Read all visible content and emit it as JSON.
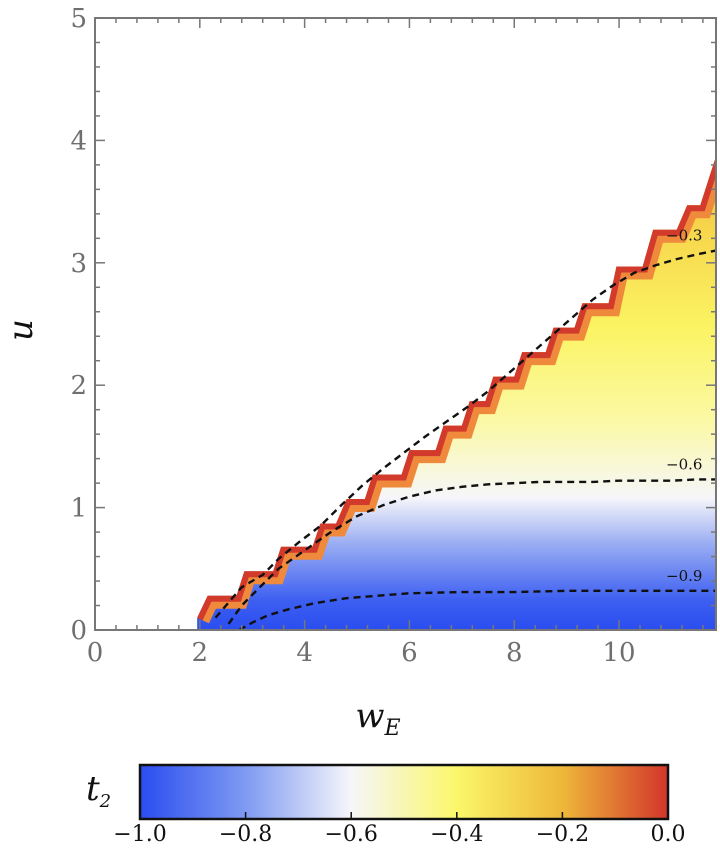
{
  "chart_data": {
    "type": "heatmap",
    "xlabel": "w",
    "xlabel_sub": "E",
    "ylabel": "u",
    "xlim": [
      0,
      11.85
    ],
    "ylim": [
      0,
      5
    ],
    "x_ticks": [
      0,
      2,
      4,
      6,
      8,
      10
    ],
    "x_tick_labels": [
      "0",
      "2",
      "4",
      "6",
      "8",
      "10"
    ],
    "y_ticks": [
      0,
      1,
      2,
      3,
      4,
      5
    ],
    "y_tick_labels": [
      "0",
      "1",
      "2",
      "3",
      "4",
      "5"
    ],
    "region_upper_boundary": {
      "x": [
        1.95,
        2.15,
        2.7,
        2.85,
        3.4,
        3.55,
        4.15,
        4.3,
        4.6,
        4.8,
        5.15,
        5.3,
        5.85,
        6.0,
        6.5,
        6.65,
        7.0,
        7.15,
        7.45,
        7.6,
        8.0,
        8.15,
        8.6,
        8.75,
        9.15,
        9.3,
        9.8,
        9.95,
        10.45,
        10.65,
        11.1,
        11.3,
        11.55,
        11.85
      ],
      "y": [
        0.1,
        0.28,
        0.28,
        0.48,
        0.48,
        0.68,
        0.68,
        0.87,
        0.87,
        1.07,
        1.07,
        1.27,
        1.27,
        1.47,
        1.47,
        1.67,
        1.67,
        1.87,
        1.87,
        2.07,
        2.07,
        2.27,
        2.27,
        2.47,
        2.47,
        2.67,
        2.67,
        2.97,
        2.97,
        3.27,
        3.27,
        3.47,
        3.47,
        3.87
      ]
    },
    "contours": [
      {
        "level": -0.3,
        "label": "−0.3",
        "x": [
          2.3,
          2.6,
          2.8,
          3.2,
          3.5,
          3.9,
          4.3,
          4.7,
          5.1,
          5.5,
          5.9,
          6.3,
          6.7,
          7.1,
          7.5,
          7.9,
          8.3,
          8.7,
          9.1,
          9.5,
          9.9,
          10.3,
          10.7,
          11.1,
          11.5,
          11.85
        ],
        "y": [
          0.1,
          0.25,
          0.35,
          0.45,
          0.58,
          0.72,
          0.85,
          1.02,
          1.18,
          1.32,
          1.45,
          1.58,
          1.7,
          1.82,
          1.95,
          2.1,
          2.25,
          2.4,
          2.55,
          2.7,
          2.82,
          2.92,
          2.98,
          3.03,
          3.07,
          3.1
        ]
      },
      {
        "level": -0.6,
        "label": "−0.6",
        "x": [
          2.55,
          2.8,
          3.1,
          3.5,
          4.0,
          4.5,
          5.0,
          5.5,
          6.0,
          6.5,
          7.0,
          7.5,
          8.0,
          8.5,
          9.0,
          9.5,
          10.0,
          10.5,
          11.0,
          11.5,
          11.85
        ],
        "y": [
          0.05,
          0.2,
          0.33,
          0.5,
          0.65,
          0.8,
          0.93,
          1.02,
          1.09,
          1.14,
          1.17,
          1.19,
          1.2,
          1.21,
          1.21,
          1.21,
          1.22,
          1.22,
          1.22,
          1.23,
          1.23
        ]
      },
      {
        "level": -0.9,
        "label": "−0.9",
        "x": [
          2.75,
          3.0,
          3.3,
          3.7,
          4.2,
          4.8,
          5.4,
          6.0,
          7.0,
          8.0,
          9.0,
          10.0,
          11.0,
          11.85
        ],
        "y": [
          0.0,
          0.06,
          0.12,
          0.17,
          0.22,
          0.26,
          0.28,
          0.3,
          0.31,
          0.31,
          0.32,
          0.32,
          0.32,
          0.32
        ]
      }
    ],
    "colorbar": {
      "label": "t",
      "label_sub": "2",
      "min": -1.0,
      "max": 0.0,
      "ticks": [
        -1.0,
        -0.8,
        -0.6,
        -0.4,
        -0.2,
        0.0
      ],
      "tick_labels": [
        "−1.0",
        "−0.8",
        "−0.6",
        "−0.4",
        "−0.2",
        "0.0"
      ],
      "stops": [
        {
          "value": -1.0,
          "color": "#2a4df0"
        },
        {
          "value": -0.8,
          "color": "#7f9af2"
        },
        {
          "value": -0.6,
          "color": "#f6f6fa"
        },
        {
          "value": -0.4,
          "color": "#fbf76a"
        },
        {
          "value": -0.2,
          "color": "#eeb83a"
        },
        {
          "value": 0.0,
          "color": "#d3352b"
        }
      ]
    }
  }
}
